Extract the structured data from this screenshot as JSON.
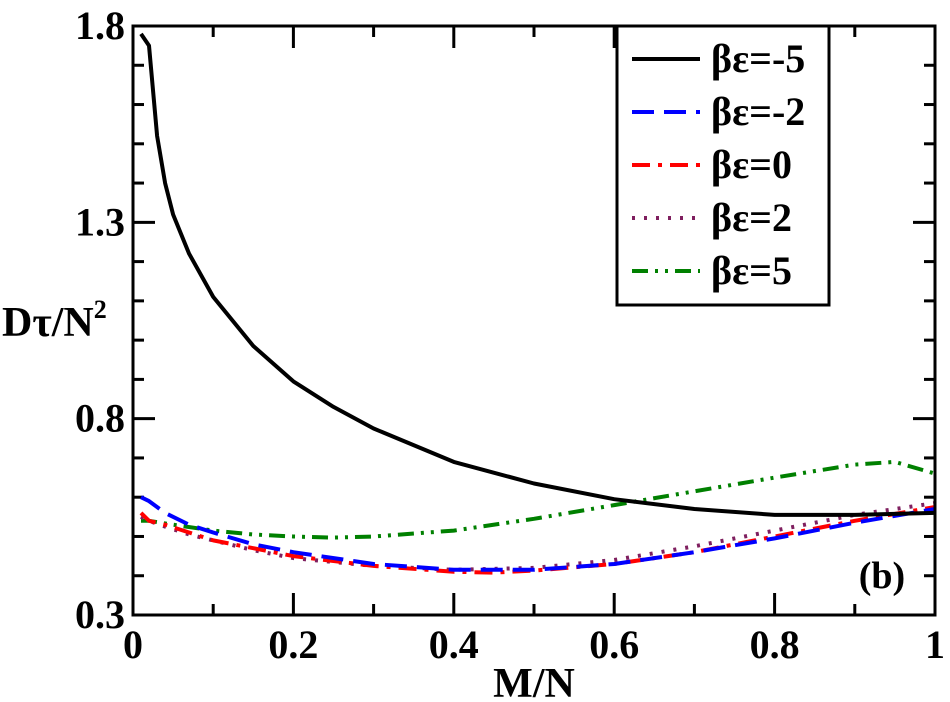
{
  "chart_data": {
    "type": "line",
    "title": "",
    "xlabel": "M/N",
    "ylabel": "Dτ/N",
    "ylabel_superscript": "2",
    "xlim": [
      0,
      1
    ],
    "ylim": [
      0.3,
      1.8
    ],
    "xticks": [
      0,
      0.2,
      0.4,
      0.6,
      0.8,
      1
    ],
    "xtick_labels": [
      "0",
      "0.2",
      "0.4",
      "0.6",
      "0.8",
      "1"
    ],
    "yticks": [
      0.3,
      0.8,
      1.3,
      1.8
    ],
    "ytick_labels": [
      "0.3",
      "0.8",
      "1.3",
      "1.8"
    ],
    "annotation": "(b)",
    "legend_position": "top-right",
    "series": [
      {
        "name": "βε=-5",
        "color": "#000000",
        "dash": "solid",
        "x": [
          0.01,
          0.02,
          0.03,
          0.04,
          0.05,
          0.07,
          0.1,
          0.15,
          0.2,
          0.25,
          0.3,
          0.4,
          0.5,
          0.6,
          0.7,
          0.8,
          0.9,
          1.0
        ],
        "y": [
          1.78,
          1.75,
          1.52,
          1.4,
          1.32,
          1.22,
          1.11,
          0.985,
          0.895,
          0.83,
          0.775,
          0.69,
          0.635,
          0.595,
          0.57,
          0.555,
          0.555,
          0.56
        ]
      },
      {
        "name": "βε=-2",
        "color": "#0000ff",
        "dash": "long-dash",
        "x": [
          0.01,
          0.02,
          0.04,
          0.07,
          0.1,
          0.15,
          0.2,
          0.3,
          0.4,
          0.5,
          0.6,
          0.7,
          0.8,
          0.9,
          1.0
        ],
        "y": [
          0.6,
          0.59,
          0.56,
          0.53,
          0.51,
          0.48,
          0.46,
          0.43,
          0.415,
          0.415,
          0.43,
          0.46,
          0.495,
          0.535,
          0.57
        ]
      },
      {
        "name": "βε=0",
        "color": "#ff0000",
        "dash": "dash-dot",
        "x": [
          0.01,
          0.02,
          0.04,
          0.07,
          0.1,
          0.15,
          0.2,
          0.3,
          0.4,
          0.45,
          0.5,
          0.6,
          0.7,
          0.8,
          0.9,
          1.0
        ],
        "y": [
          0.56,
          0.54,
          0.53,
          0.51,
          0.49,
          0.47,
          0.45,
          0.425,
          0.41,
          0.408,
          0.413,
          0.43,
          0.46,
          0.5,
          0.54,
          0.575
        ]
      },
      {
        "name": "βε=2",
        "color": "#7f1f5f",
        "dash": "dotted",
        "x": [
          0.01,
          0.02,
          0.04,
          0.07,
          0.1,
          0.15,
          0.2,
          0.3,
          0.4,
          0.5,
          0.6,
          0.7,
          0.8,
          0.9,
          1.0
        ],
        "y": [
          0.55,
          0.54,
          0.525,
          0.505,
          0.49,
          0.465,
          0.445,
          0.425,
          0.415,
          0.42,
          0.44,
          0.475,
          0.515,
          0.555,
          0.585
        ]
      },
      {
        "name": "βε=5",
        "color": "#008000",
        "dash": "dash-dot-dot",
        "x": [
          0.01,
          0.02,
          0.05,
          0.1,
          0.15,
          0.2,
          0.25,
          0.3,
          0.4,
          0.5,
          0.6,
          0.7,
          0.8,
          0.9,
          0.95,
          1.0
        ],
        "y": [
          0.54,
          0.54,
          0.53,
          0.515,
          0.505,
          0.5,
          0.497,
          0.5,
          0.515,
          0.545,
          0.58,
          0.615,
          0.65,
          0.683,
          0.69,
          0.66
        ]
      }
    ]
  }
}
